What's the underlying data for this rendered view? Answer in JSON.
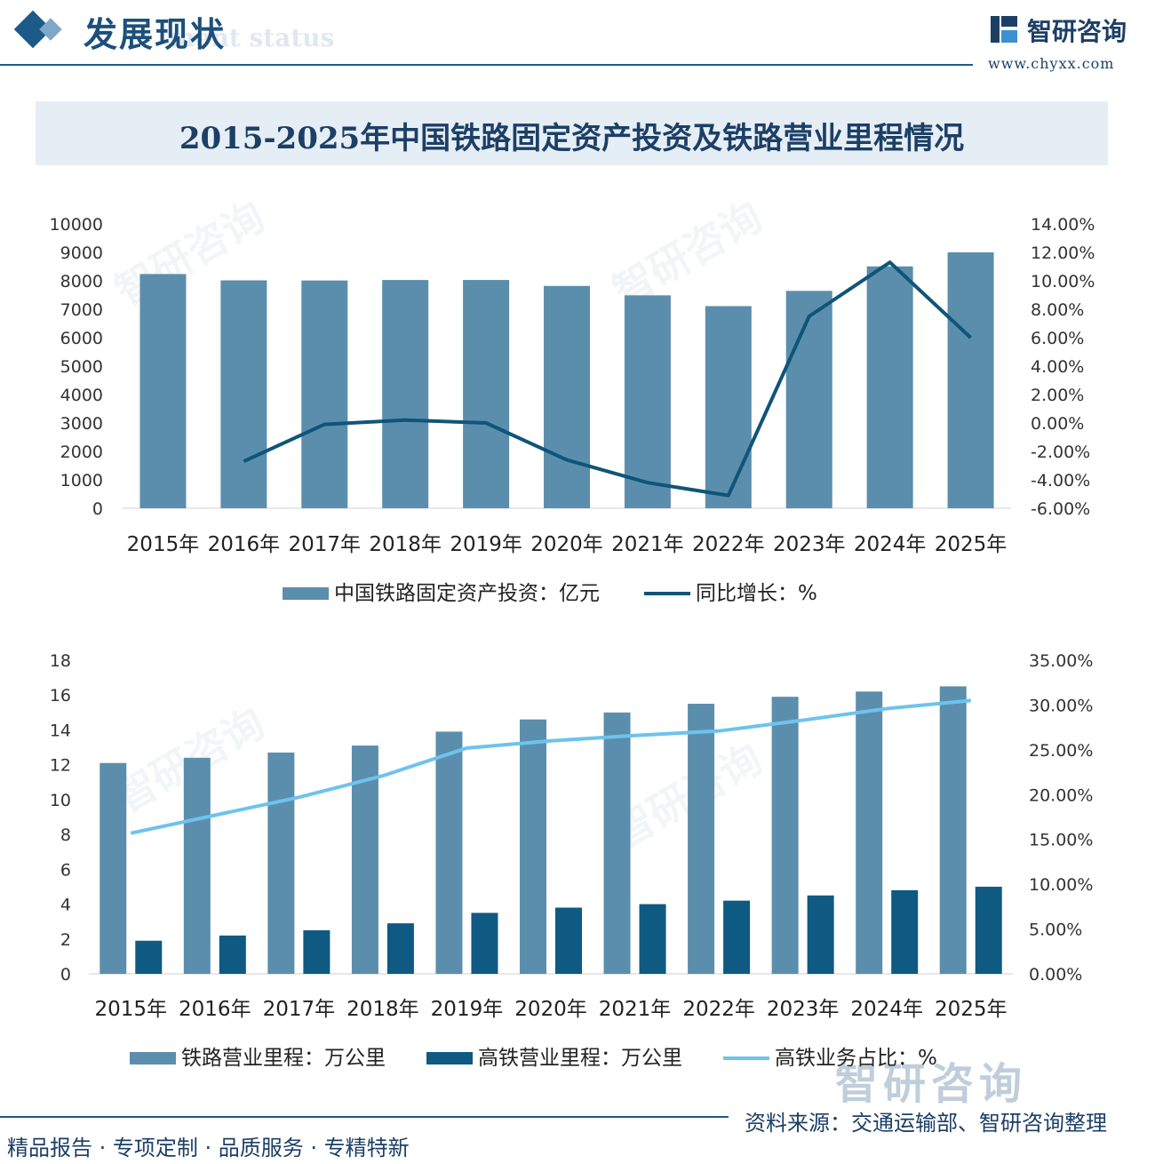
{
  "header": {
    "title": "发展现状",
    "subtitle_watermark": "ment status",
    "logo_name": "智研咨询",
    "logo_url": "www.chyxx.com"
  },
  "main_title": "2015-2025年中国铁路固定资产投资及铁路营业里程情况",
  "watermark_text": "智研咨询",
  "brand_bottom": "智研咨询",
  "footer": {
    "left": "精品报告 · 专项定制 · 品质服务 · 专精特新",
    "source": "资料来源：交通运输部、智研咨询整理"
  },
  "colors": {
    "bar_main": "#5b8ead",
    "bar_dark": "#0e5a82",
    "line_dark": "#0f5578",
    "line_light": "#6ec3ec",
    "axis_text": "#333333"
  },
  "chart_data": [
    {
      "type": "bar",
      "categories": [
        "2015年",
        "2016年",
        "2017年",
        "2018年",
        "2019年",
        "2020年",
        "2021年",
        "2022年",
        "2023年",
        "2024年",
        "2025年"
      ],
      "series": [
        {
          "name": "中国铁路固定资产投资：亿元",
          "kind": "bar",
          "axis": "left",
          "values": [
            8238,
            8015,
            8010,
            8028,
            8029,
            7819,
            7489,
            7109,
            7645,
            8506,
            9000
          ]
        },
        {
          "name": "同比增长：%",
          "kind": "line",
          "axis": "right",
          "values": [
            null,
            -2.7,
            -0.1,
            0.2,
            0.0,
            -2.6,
            -4.2,
            -5.1,
            7.5,
            11.3,
            6.0
          ]
        }
      ],
      "ylim_left": [
        0,
        10000
      ],
      "yticks_left": [
        "0",
        "1000",
        "2000",
        "3000",
        "4000",
        "5000",
        "6000",
        "7000",
        "8000",
        "9000",
        "10000"
      ],
      "ylim_right": [
        -6,
        14
      ],
      "yticks_right": [
        "-6.00%",
        "-4.00%",
        "-2.00%",
        "0.00%",
        "2.00%",
        "4.00%",
        "6.00%",
        "8.00%",
        "10.00%",
        "12.00%",
        "14.00%"
      ],
      "legend_position": "bottom",
      "grid": false
    },
    {
      "type": "bar",
      "categories": [
        "2015年",
        "2016年",
        "2017年",
        "2018年",
        "2019年",
        "2020年",
        "2021年",
        "2022年",
        "2023年",
        "2024年",
        "2025年"
      ],
      "series": [
        {
          "name": "铁路营业里程：万公里",
          "kind": "bar",
          "axis": "left",
          "values": [
            12.1,
            12.4,
            12.7,
            13.1,
            13.9,
            14.6,
            15.0,
            15.5,
            15.9,
            16.2,
            16.5
          ]
        },
        {
          "name": "高铁营业里程：万公里",
          "kind": "bar",
          "axis": "left",
          "values": [
            1.9,
            2.2,
            2.5,
            2.9,
            3.5,
            3.8,
            4.0,
            4.2,
            4.5,
            4.8,
            5.0
          ]
        },
        {
          "name": "高铁业务占比：%",
          "kind": "line",
          "axis": "right",
          "values": [
            15.7,
            17.7,
            19.7,
            22.1,
            25.2,
            26.0,
            26.6,
            27.1,
            28.3,
            29.6,
            30.5
          ]
        }
      ],
      "ylim_left": [
        0,
        18
      ],
      "yticks_left": [
        "0",
        "2",
        "4",
        "6",
        "8",
        "10",
        "12",
        "14",
        "16",
        "18"
      ],
      "ylim_right": [
        0,
        35
      ],
      "yticks_right": [
        "0.00%",
        "5.00%",
        "10.00%",
        "15.00%",
        "20.00%",
        "25.00%",
        "30.00%",
        "35.00%"
      ],
      "legend_position": "bottom",
      "grid": false
    }
  ]
}
